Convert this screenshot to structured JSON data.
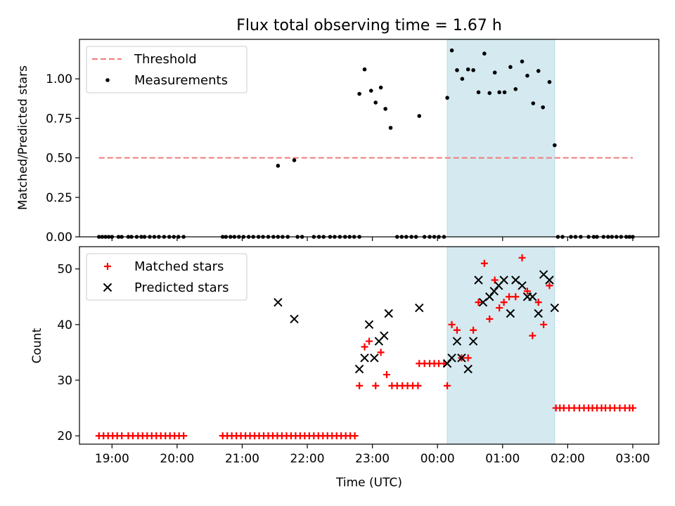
{
  "chart_data": [
    {
      "type": "scatter",
      "title": "Flux total observing time = 1.67 h",
      "xlabel": "",
      "ylabel": "Matched/Predicted stars",
      "ylim": [
        0,
        1.25
      ],
      "xlim": [
        -5.5,
        3.4
      ],
      "x_units": "hours relative to 00:00 UTC",
      "yticks": [
        0,
        0.25,
        0.5,
        0.75,
        1.0
      ],
      "ytick_labels": [
        "0.00",
        "0.25",
        "0.50",
        "0.75",
        "1.00"
      ],
      "highlight_span": [
        0.15,
        1.8
      ],
      "highlight_color": "#d4eaf0",
      "legend": {
        "position": "upper-left",
        "entries": [
          "Threshold",
          "Measurements"
        ]
      },
      "threshold": {
        "name": "Threshold",
        "y": 0.5,
        "x": [
          -5.2,
          3.0
        ],
        "color": "#f07b7b",
        "style": "dashed"
      },
      "series": [
        {
          "name": "Measurements",
          "marker": "dot",
          "color": "#000000",
          "points": [
            [
              -5.2,
              0
            ],
            [
              -5.15,
              0
            ],
            [
              -5.1,
              0
            ],
            [
              -5.05,
              0
            ],
            [
              -5.0,
              0
            ],
            [
              -4.9,
              0
            ],
            [
              -4.85,
              0
            ],
            [
              -4.75,
              0
            ],
            [
              -4.7,
              0
            ],
            [
              -4.62,
              0
            ],
            [
              -4.55,
              0
            ],
            [
              -4.5,
              0
            ],
            [
              -4.42,
              0
            ],
            [
              -4.35,
              0
            ],
            [
              -4.28,
              0
            ],
            [
              -4.2,
              0
            ],
            [
              -4.12,
              0
            ],
            [
              -4.05,
              0
            ],
            [
              -3.98,
              0
            ],
            [
              -3.9,
              0
            ],
            [
              -3.3,
              0
            ],
            [
              -3.25,
              0
            ],
            [
              -3.18,
              0
            ],
            [
              -3.12,
              0
            ],
            [
              -3.05,
              0
            ],
            [
              -2.98,
              0
            ],
            [
              -2.9,
              0
            ],
            [
              -2.83,
              0
            ],
            [
              -2.75,
              0
            ],
            [
              -2.68,
              0
            ],
            [
              -2.6,
              0
            ],
            [
              -2.52,
              0
            ],
            [
              -2.45,
              0
            ],
            [
              -2.38,
              0
            ],
            [
              -2.3,
              0
            ],
            [
              -2.15,
              0
            ],
            [
              -2.08,
              0
            ],
            [
              -1.9,
              0
            ],
            [
              -1.82,
              0
            ],
            [
              -1.75,
              0
            ],
            [
              -1.65,
              0
            ],
            [
              -1.58,
              0
            ],
            [
              -1.5,
              0
            ],
            [
              -1.42,
              0
            ],
            [
              -1.35,
              0
            ],
            [
              -1.28,
              0
            ],
            [
              -1.2,
              0
            ],
            [
              -0.62,
              0
            ],
            [
              -0.55,
              0
            ],
            [
              -0.48,
              0
            ],
            [
              -0.4,
              0
            ],
            [
              -0.33,
              0
            ],
            [
              -0.2,
              0
            ],
            [
              -0.12,
              0
            ],
            [
              -0.05,
              0
            ],
            [
              0.02,
              0
            ],
            [
              0.1,
              0
            ],
            [
              1.85,
              0
            ],
            [
              1.92,
              0
            ],
            [
              2.05,
              0
            ],
            [
              2.12,
              0
            ],
            [
              2.2,
              0
            ],
            [
              2.32,
              0
            ],
            [
              2.4,
              0
            ],
            [
              2.45,
              0
            ],
            [
              2.55,
              0
            ],
            [
              2.62,
              0
            ],
            [
              2.68,
              0
            ],
            [
              2.75,
              0
            ],
            [
              2.82,
              0
            ],
            [
              2.9,
              0
            ],
            [
              2.95,
              0
            ],
            [
              3.0,
              0
            ],
            [
              -2.45,
              0.45
            ],
            [
              -2.2,
              0.485
            ],
            [
              -1.2,
              0.905
            ],
            [
              -1.12,
              1.06
            ],
            [
              -1.02,
              0.925
            ],
            [
              -0.95,
              0.85
            ],
            [
              -0.87,
              0.945
            ],
            [
              -0.8,
              0.81
            ],
            [
              -0.72,
              0.69
            ],
            [
              -0.28,
              0.765
            ],
            [
              0.15,
              0.88
            ],
            [
              0.22,
              1.18
            ],
            [
              0.3,
              1.055
            ],
            [
              0.38,
              1.0
            ],
            [
              0.47,
              1.06
            ],
            [
              0.55,
              1.055
            ],
            [
              0.63,
              0.915
            ],
            [
              0.72,
              1.16
            ],
            [
              0.8,
              0.91
            ],
            [
              0.88,
              1.04
            ],
            [
              0.95,
              0.915
            ],
            [
              1.03,
              0.915
            ],
            [
              1.12,
              1.075
            ],
            [
              1.2,
              0.935
            ],
            [
              1.3,
              1.11
            ],
            [
              1.38,
              1.02
            ],
            [
              1.47,
              0.845
            ],
            [
              1.55,
              1.05
            ],
            [
              1.62,
              0.82
            ],
            [
              1.72,
              0.98
            ],
            [
              1.8,
              0.58
            ]
          ]
        }
      ]
    },
    {
      "type": "scatter",
      "title": "",
      "xlabel": "Time (UTC)",
      "ylabel": "Count",
      "ylim": [
        18.5,
        54
      ],
      "xlim": [
        -5.5,
        3.4
      ],
      "x_units": "hours relative to 00:00 UTC",
      "yticks": [
        20,
        30,
        40,
        50
      ],
      "ytick_labels": [
        "20",
        "30",
        "40",
        "50"
      ],
      "xticks": [
        -5,
        -4,
        -3,
        -2,
        -1,
        0,
        1,
        2,
        3
      ],
      "xtick_labels": [
        "19:00",
        "20:00",
        "21:00",
        "22:00",
        "23:00",
        "00:00",
        "01:00",
        "02:00",
        "03:00"
      ],
      "highlight_span": [
        0.15,
        1.8
      ],
      "highlight_color": "#d4eaf0",
      "legend": {
        "position": "upper-left",
        "entries": [
          "Matched stars",
          "Predicted stars"
        ]
      },
      "series": [
        {
          "name": "Matched stars",
          "marker": "plus",
          "color": "#ff0000",
          "points": [
            [
              -5.2,
              20
            ],
            [
              -5.13,
              20
            ],
            [
              -5.06,
              20
            ],
            [
              -4.99,
              20
            ],
            [
              -4.92,
              20
            ],
            [
              -4.85,
              20
            ],
            [
              -4.75,
              20
            ],
            [
              -4.68,
              20
            ],
            [
              -4.6,
              20
            ],
            [
              -4.53,
              20
            ],
            [
              -4.46,
              20
            ],
            [
              -4.39,
              20
            ],
            [
              -4.32,
              20
            ],
            [
              -4.25,
              20
            ],
            [
              -4.18,
              20
            ],
            [
              -4.11,
              20
            ],
            [
              -4.04,
              20
            ],
            [
              -3.97,
              20
            ],
            [
              -3.9,
              20
            ],
            [
              -3.3,
              20
            ],
            [
              -3.23,
              20
            ],
            [
              -3.16,
              20
            ],
            [
              -3.09,
              20
            ],
            [
              -3.02,
              20
            ],
            [
              -2.95,
              20
            ],
            [
              -2.88,
              20
            ],
            [
              -2.81,
              20
            ],
            [
              -2.74,
              20
            ],
            [
              -2.67,
              20
            ],
            [
              -2.6,
              20
            ],
            [
              -2.53,
              20
            ],
            [
              -2.46,
              20
            ],
            [
              -2.39,
              20
            ],
            [
              -2.32,
              20
            ],
            [
              -2.25,
              20
            ],
            [
              -2.18,
              20
            ],
            [
              -2.11,
              20
            ],
            [
              -2.04,
              20
            ],
            [
              -1.97,
              20
            ],
            [
              -1.9,
              20
            ],
            [
              -1.83,
              20
            ],
            [
              -1.76,
              20
            ],
            [
              -1.69,
              20
            ],
            [
              -1.62,
              20
            ],
            [
              -1.55,
              20
            ],
            [
              -1.48,
              20
            ],
            [
              -1.41,
              20
            ],
            [
              -1.34,
              20
            ],
            [
              -1.27,
              20
            ],
            [
              -1.2,
              29
            ],
            [
              -1.12,
              36
            ],
            [
              -1.05,
              37
            ],
            [
              -0.95,
              29
            ],
            [
              -0.87,
              35
            ],
            [
              -0.78,
              31
            ],
            [
              -0.7,
              29
            ],
            [
              -0.62,
              29
            ],
            [
              -0.54,
              29
            ],
            [
              -0.46,
              29
            ],
            [
              -0.38,
              29
            ],
            [
              -0.3,
              29
            ],
            [
              -0.28,
              33
            ],
            [
              -0.2,
              33
            ],
            [
              -0.12,
              33
            ],
            [
              -0.05,
              33
            ],
            [
              0.02,
              33
            ],
            [
              0.1,
              33
            ],
            [
              0.15,
              29
            ],
            [
              0.22,
              40
            ],
            [
              0.3,
              39
            ],
            [
              0.37,
              34
            ],
            [
              0.47,
              34
            ],
            [
              0.55,
              39
            ],
            [
              0.63,
              44
            ],
            [
              0.72,
              51
            ],
            [
              0.8,
              41
            ],
            [
              0.88,
              48
            ],
            [
              0.95,
              43
            ],
            [
              1.02,
              44
            ],
            [
              1.1,
              45
            ],
            [
              1.2,
              45
            ],
            [
              1.3,
              52
            ],
            [
              1.38,
              46
            ],
            [
              1.46,
              38
            ],
            [
              1.55,
              44
            ],
            [
              1.63,
              40
            ],
            [
              1.72,
              47
            ],
            [
              1.82,
              25
            ],
            [
              1.88,
              25
            ],
            [
              1.94,
              25
            ],
            [
              2.02,
              25
            ],
            [
              2.1,
              25
            ],
            [
              2.18,
              25
            ],
            [
              2.25,
              25
            ],
            [
              2.32,
              25
            ],
            [
              2.38,
              25
            ],
            [
              2.45,
              25
            ],
            [
              2.52,
              25
            ],
            [
              2.58,
              25
            ],
            [
              2.65,
              25
            ],
            [
              2.72,
              25
            ],
            [
              2.8,
              25
            ],
            [
              2.88,
              25
            ],
            [
              2.95,
              25
            ],
            [
              3.0,
              25
            ]
          ]
        },
        {
          "name": "Predicted stars",
          "marker": "x",
          "color": "#000000",
          "points": [
            [
              -2.45,
              44
            ],
            [
              -2.2,
              41
            ],
            [
              -1.2,
              32
            ],
            [
              -1.12,
              34
            ],
            [
              -1.05,
              40
            ],
            [
              -0.97,
              34
            ],
            [
              -0.9,
              37
            ],
            [
              -0.82,
              38
            ],
            [
              -0.75,
              42
            ],
            [
              -0.28,
              43
            ],
            [
              0.15,
              33
            ],
            [
              0.22,
              34
            ],
            [
              0.3,
              37
            ],
            [
              0.37,
              34
            ],
            [
              0.47,
              32
            ],
            [
              0.55,
              37
            ],
            [
              0.63,
              48
            ],
            [
              0.7,
              44
            ],
            [
              0.8,
              45
            ],
            [
              0.87,
              46
            ],
            [
              0.94,
              47
            ],
            [
              1.02,
              48
            ],
            [
              1.12,
              42
            ],
            [
              1.2,
              48
            ],
            [
              1.3,
              47
            ],
            [
              1.38,
              45
            ],
            [
              1.46,
              45
            ],
            [
              1.55,
              42
            ],
            [
              1.63,
              49
            ],
            [
              1.72,
              48
            ],
            [
              1.8,
              43
            ]
          ]
        }
      ]
    }
  ]
}
